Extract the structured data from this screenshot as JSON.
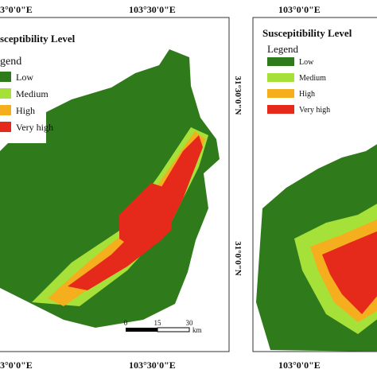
{
  "left_map": {
    "top_labels": [
      "3°0'0\"E",
      "103°30'0\"E"
    ],
    "title": "sceptibility Level",
    "legend_title": "gend",
    "legend": [
      "Low",
      "Medium",
      "High",
      "Very high"
    ],
    "legend_colors": [
      "#2f7a1a",
      "#a6e13a",
      "#f5ae1d",
      "#e5291b"
    ],
    "right_labels": [
      "31°30'0\"N",
      "31°0'0\"N"
    ],
    "bottom_labels": [
      "3°0'0\"E",
      "103°30'0\"E"
    ],
    "scale": [
      "0",
      "15",
      "30",
      "km"
    ]
  },
  "right_map": {
    "top_label": "103°0'0\"E",
    "title": "Suscepitibility Level",
    "legend_title": "Legend",
    "legend": [
      "Low",
      "Medium",
      "High",
      "Very high"
    ],
    "legend_colors": [
      "#2f7a1a",
      "#a6e13a",
      "#f5ae1d",
      "#e5291b"
    ],
    "bottom_label": "103°0'0\"E"
  }
}
